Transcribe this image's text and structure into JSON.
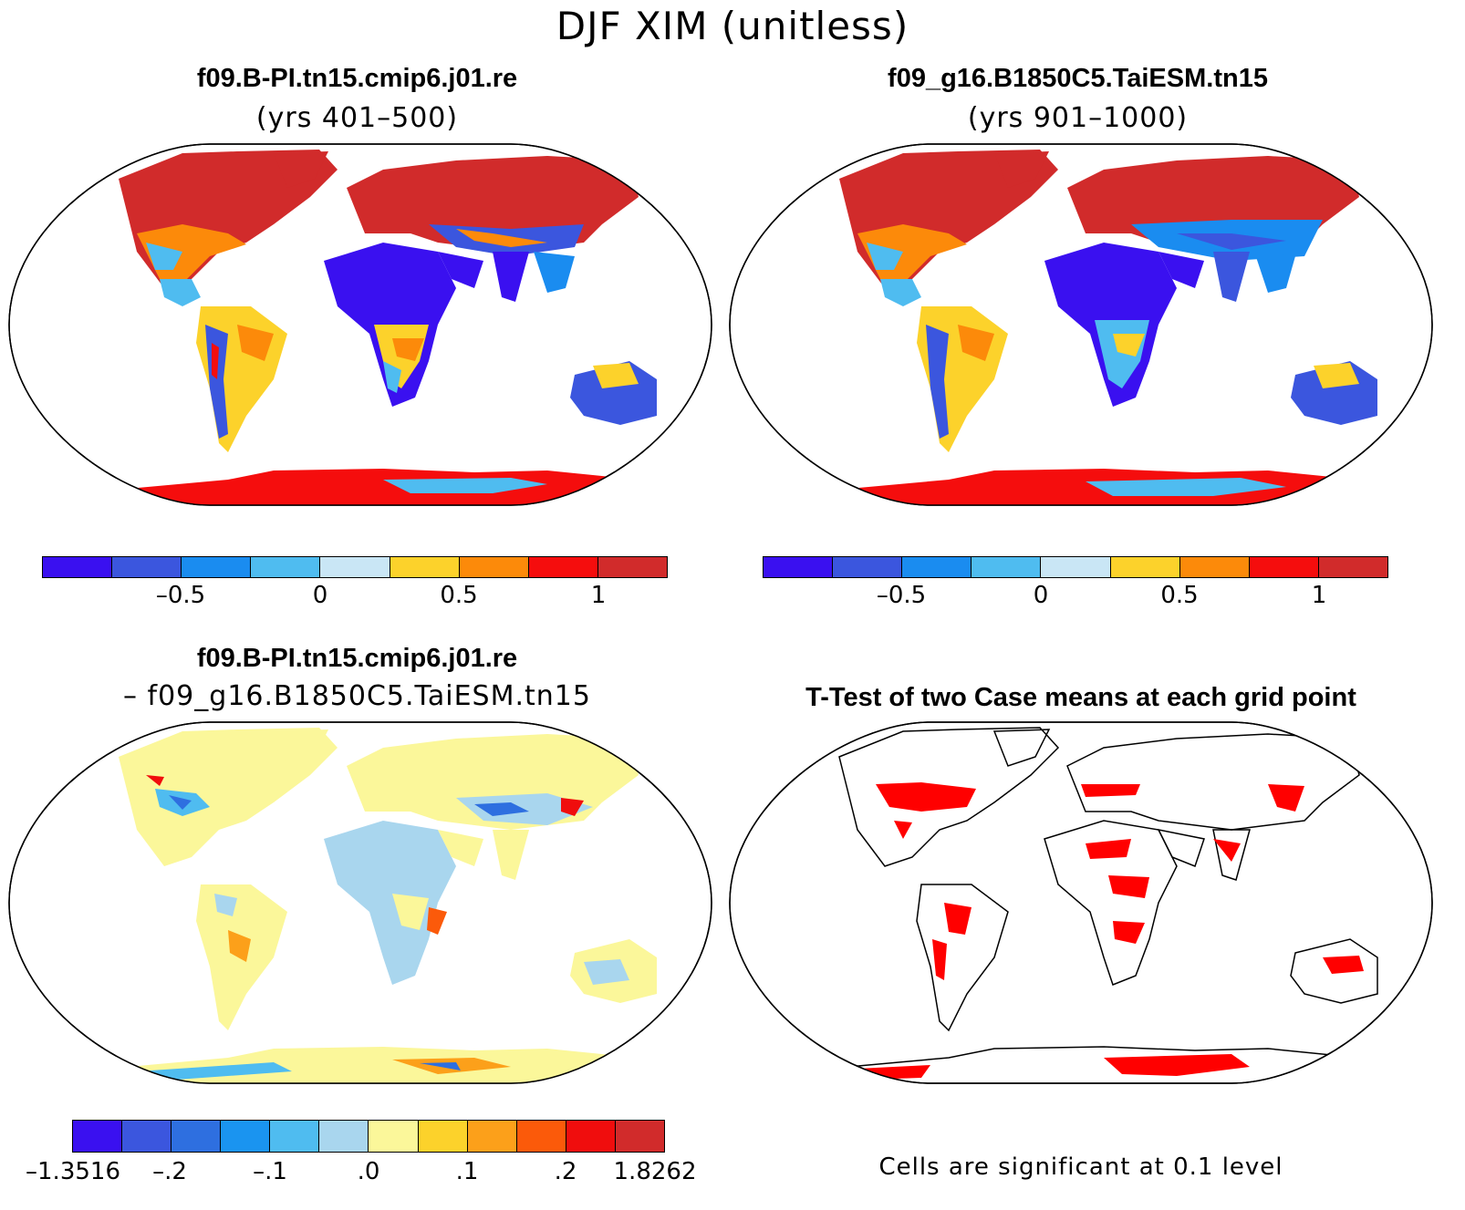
{
  "title": "DJF XIM (unitless)",
  "panels": [
    {
      "title": "f09.B-PI.tn15.cmip6.j01.re",
      "subtitle": "(yrs 401–500)"
    },
    {
      "title": "f09_g16.B1850C5.TaiESM.tn15",
      "subtitle": "(yrs 901–1000)"
    },
    {
      "title": "f09.B-PI.tn15.cmip6.j01.re",
      "subtitle": "– f09_g16.B1850C5.TaiESM.tn15"
    },
    {
      "title": "T-Test of two Case means at each grid point",
      "subtitle": ""
    }
  ],
  "colorbar_abs": {
    "colors": [
      "#3a10f0",
      "#3b56de",
      "#1a8cf0",
      "#4fbcf0",
      "#c9e6f5",
      "#fcd22b",
      "#fc8a0a",
      "#f50d0d",
      "#d12b2b"
    ],
    "labels": [
      "–0.5",
      "0",
      "0.5",
      "1"
    ]
  },
  "colorbar_diff": {
    "colors": [
      "#3a10f0",
      "#3b56de",
      "#2e6fe0",
      "#1a94f0",
      "#4fbcf0",
      "#a9d6ee",
      "#fbf79a",
      "#fcd22b",
      "#fca01a",
      "#fb5a0a",
      "#f00d0d",
      "#d12b2b"
    ],
    "labels": [
      "–1.3516",
      "–.2",
      "–.1",
      ".0",
      ".1",
      ".2",
      "1.8262"
    ]
  },
  "ttest_note": "Cells are significant at 0.1 level",
  "legend_colors": {
    "significant": "#ff0000",
    "land_outline": "#000000"
  }
}
